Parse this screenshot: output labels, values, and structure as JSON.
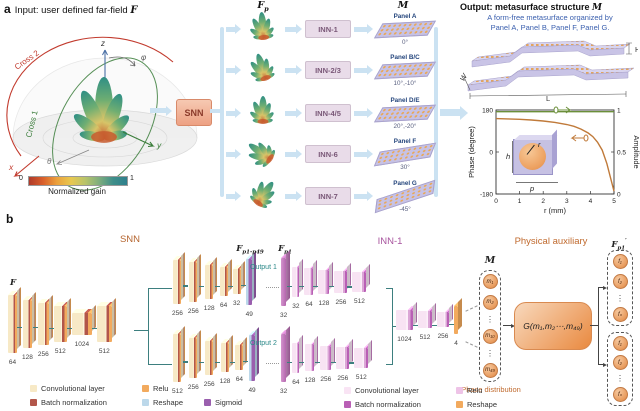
{
  "panel_a": {
    "label": "a",
    "input_title": "Input: user defined far-field",
    "f_symbol": "F",
    "plot": {
      "x": "x",
      "y": "y",
      "z": "z",
      "theta": "θ",
      "phi": "φ",
      "cross1": "Cross 1",
      "cross2": "Cross 2",
      "colorbar_min": "0",
      "colorbar_max": "1",
      "colorbar_label": "Normalized gain"
    },
    "snn_label": "SNN",
    "ffp": {
      "base": "F",
      "sub": "p"
    },
    "m_header": "M",
    "rows": [
      {
        "inn": "INN-1",
        "panel": "Panel A",
        "angle": "0°"
      },
      {
        "inn": "INN-2/3",
        "panel": "Panel B/C",
        "angle": "10°,-10°"
      },
      {
        "inn": "INN-4/5",
        "panel": "Panel D/E",
        "angle": "20°,-20°"
      },
      {
        "inn": "INN-6",
        "panel": "Panel F",
        "angle": "30°"
      },
      {
        "inn": "INN-7",
        "panel": "Panel G",
        "angle": "-45°"
      }
    ],
    "output": {
      "title": "Output: metasurface structure",
      "m_symbol": "M",
      "subtitle1": "A form-free metasurface organized by",
      "subtitle2": "Panel A, Panel B, Panel F, Panel G.",
      "dims": {
        "W": "W",
        "H": "H",
        "L": "L"
      }
    },
    "unitcell": {
      "h": "h",
      "r": "r",
      "p": "p"
    }
  },
  "chart_data": {
    "type": "line",
    "xlabel": "r (mm)",
    "ylabel_left": "Phase (degree)",
    "ylabel_right": "Amplitude",
    "xlim": [
      0,
      5
    ],
    "x_ticks": [
      "0",
      "1",
      "2",
      "3",
      "4",
      "5"
    ],
    "left_lim": [
      -180,
      180
    ],
    "left_ticks": [
      "180",
      "0",
      "-180"
    ],
    "right_lim": [
      0,
      1
    ],
    "right_ticks": [
      "1",
      "0.5",
      "0"
    ],
    "series": [
      {
        "name": "phase",
        "axis": "left",
        "color": "#c07a3a",
        "x": [
          0,
          0.5,
          1,
          1.5,
          2,
          2.5,
          3,
          3.3,
          3.6,
          3.9,
          4.1,
          4.3,
          4.5,
          4.7,
          4.85,
          5
        ],
        "y": [
          143,
          142,
          140,
          137,
          133,
          127,
          118,
          110,
          98,
          82,
          66,
          42,
          8,
          -50,
          -110,
          -168
        ]
      },
      {
        "name": "amplitude",
        "axis": "right",
        "color": "#6b8f3a",
        "x": [
          0,
          5
        ],
        "y": [
          0.98,
          0.98
        ]
      }
    ]
  },
  "panel_b": {
    "label": "b",
    "snn_title": "SNN",
    "inn_title": "INN-1",
    "aux_title": "Physical auxiliary",
    "f_in": {
      "base": "F"
    },
    "trunk": [
      "64",
      "128",
      "256",
      "512",
      "1024",
      "512"
    ],
    "fp49": {
      "base": "F",
      "sub": "p1-p49"
    },
    "fp1": {
      "base": "F",
      "sub": "p1"
    },
    "fp1_out": {
      "base": "F",
      "sub": "p1",
      "sup": "′"
    },
    "output1": "Output 1",
    "output2": "Output 2",
    "branch1": [
      "256",
      "256",
      "128",
      "64",
      "32",
      "49"
    ],
    "branch2": [
      "512",
      "256",
      "256",
      "128",
      "64",
      "49"
    ],
    "inn_row1": [
      "32",
      "32",
      "64",
      "128",
      "256",
      "512"
    ],
    "inn_row2": [
      "32",
      "64",
      "128",
      "256",
      "256",
      "512"
    ],
    "merge": [
      "1024",
      "512",
      "256",
      "4"
    ],
    "m_header": "M",
    "m_items": [
      "m₁",
      "m₂",
      "⋮",
      "m₁₀",
      "⋮",
      "m₄₉"
    ],
    "phase_dist": "Phase distribution",
    "g_label": "G(m₁,m₂⋯,m₄₉)",
    "f_top": [
      "f₁",
      "f₂",
      "⋮",
      "fₙ"
    ],
    "f_bottom": [
      "f₁",
      "f₂",
      "⋮",
      "fₙ"
    ],
    "legend_snn_row1": [
      {
        "label": "Convolutional layer",
        "color": "#f7e9c6"
      },
      {
        "label": "Relu",
        "color": "#f2aa5e"
      }
    ],
    "legend_snn_row2": [
      {
        "label": "Batch normalization",
        "color": "#b2564a"
      },
      {
        "label": "Reshape",
        "color": "#bcd8ea"
      },
      {
        "label": "Sigmoid",
        "color": "#9a5fae"
      }
    ],
    "legend_inn_row1": [
      {
        "label": "Convolutional layer",
        "color": "#f9e4f4"
      },
      {
        "label": "Relu",
        "color": "#eec3e7"
      }
    ],
    "legend_inn_row2": [
      {
        "label": "Batch normalization",
        "color": "#b95fb5"
      },
      {
        "label": "Reshape",
        "color": "#f2aa5e"
      }
    ]
  }
}
